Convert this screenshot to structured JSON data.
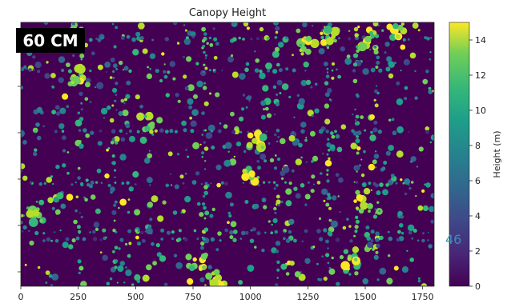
{
  "chart_data": {
    "type": "heatmap",
    "title": "Canopy Height",
    "xlabel": "",
    "ylabel": "",
    "x_ticks": [
      0,
      250,
      500,
      750,
      1000,
      1250,
      1500,
      1750
    ],
    "x_tick_labels": [
      "0",
      "250",
      "500",
      "750",
      "1000",
      "1250",
      "1500",
      "1750"
    ],
    "xlim": [
      0,
      1800
    ],
    "y_ticks_count": 6,
    "colorbar": {
      "label": "Height (m)",
      "range": [
        0,
        15
      ],
      "ticks": [
        0,
        2,
        4,
        6,
        8,
        10,
        12,
        14
      ],
      "tick_labels": [
        "0",
        "2",
        "4",
        "6",
        "8",
        "10",
        "12",
        "14"
      ],
      "colormap": "viridis"
    },
    "grid": false
  },
  "overlay": {
    "badge_text": "60 CM",
    "watermark_text": "46"
  },
  "colors": {
    "background": "#440154",
    "low": "#440154",
    "mid": "#21918c",
    "high": "#fde725"
  }
}
